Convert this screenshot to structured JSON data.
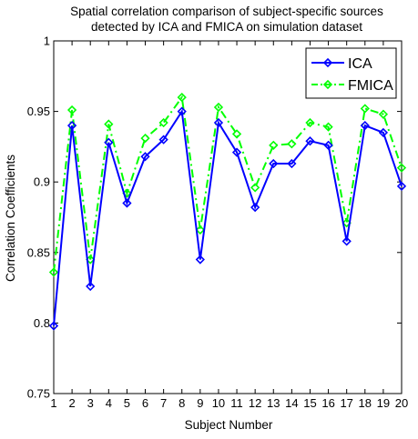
{
  "chart_data": {
    "type": "line",
    "title_lines": [
      "Spatial correlation comparison of subject-specific sources",
      "detected by ICA and FMICA on simulation dataset"
    ],
    "xlabel": "Subject Number",
    "ylabel": "Correlation Coefficients",
    "x": [
      1,
      2,
      3,
      4,
      5,
      6,
      7,
      8,
      9,
      10,
      11,
      12,
      13,
      14,
      15,
      16,
      17,
      18,
      19,
      20
    ],
    "xlim": [
      1,
      20
    ],
    "ylim": [
      0.75,
      1.0
    ],
    "x_ticks": [
      "1",
      "2",
      "3",
      "4",
      "5",
      "6",
      "7",
      "8",
      "9",
      "10",
      "11",
      "12",
      "13",
      "14",
      "15",
      "16",
      "17",
      "18",
      "19",
      "20"
    ],
    "y_ticks": [
      {
        "value": 0.75,
        "label": "0.75"
      },
      {
        "value": 0.8,
        "label": "0.8"
      },
      {
        "value": 0.85,
        "label": "0.85"
      },
      {
        "value": 0.9,
        "label": "0.9"
      },
      {
        "value": 0.95,
        "label": "0.95"
      },
      {
        "value": 1.0,
        "label": "1"
      }
    ],
    "grid": false,
    "legend_position": "top-right",
    "series": [
      {
        "name": "ICA",
        "color": "#0000ff",
        "line_style": "solid",
        "marker": "diamond",
        "values": [
          0.798,
          0.94,
          0.826,
          0.928,
          0.885,
          0.918,
          0.93,
          0.95,
          0.845,
          0.942,
          0.921,
          0.882,
          0.913,
          0.913,
          0.929,
          0.926,
          0.858,
          0.94,
          0.935,
          0.897
        ]
      },
      {
        "name": "FMICA",
        "color": "#00ff00",
        "line_style": "dash-dot",
        "marker": "diamond",
        "values": [
          0.836,
          0.951,
          0.845,
          0.941,
          0.892,
          0.931,
          0.942,
          0.96,
          0.866,
          0.953,
          0.934,
          0.896,
          0.926,
          0.927,
          0.942,
          0.939,
          0.871,
          0.952,
          0.948,
          0.91
        ]
      }
    ]
  }
}
